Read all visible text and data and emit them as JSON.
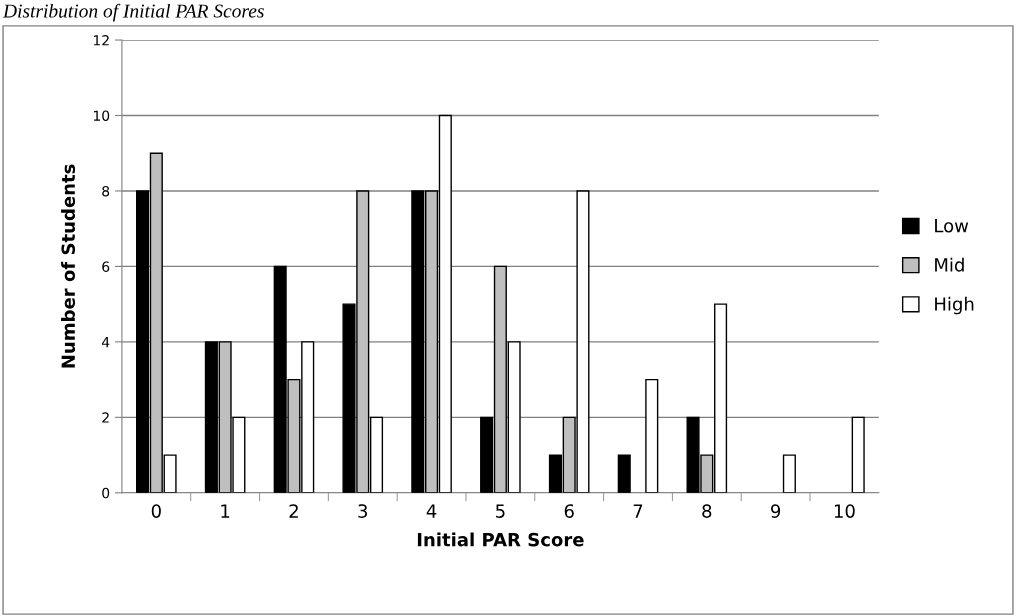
{
  "chart_data": {
    "type": "bar",
    "title": "Distribution of Initial PAR Scores",
    "xlabel": "Initial PAR Score",
    "ylabel": "Number of Students",
    "categories": [
      "0",
      "1",
      "2",
      "3",
      "4",
      "5",
      "6",
      "7",
      "8",
      "9",
      "10"
    ],
    "series": [
      {
        "name": "Low",
        "color": "#000000",
        "values": [
          8,
          4,
          6,
          5,
          8,
          2,
          1,
          1,
          2,
          0,
          0
        ]
      },
      {
        "name": "Mid",
        "color": "#bfbfbf",
        "values": [
          9,
          4,
          3,
          8,
          8,
          6,
          2,
          0,
          1,
          0,
          0
        ]
      },
      {
        "name": "High",
        "color": "#ffffff",
        "values": [
          1,
          2,
          4,
          2,
          10,
          4,
          8,
          3,
          5,
          1,
          2
        ]
      }
    ],
    "ylim": [
      0,
      12
    ],
    "yticks": [
      0,
      2,
      4,
      6,
      8,
      10,
      12
    ],
    "grid": "y",
    "legend": "right"
  }
}
